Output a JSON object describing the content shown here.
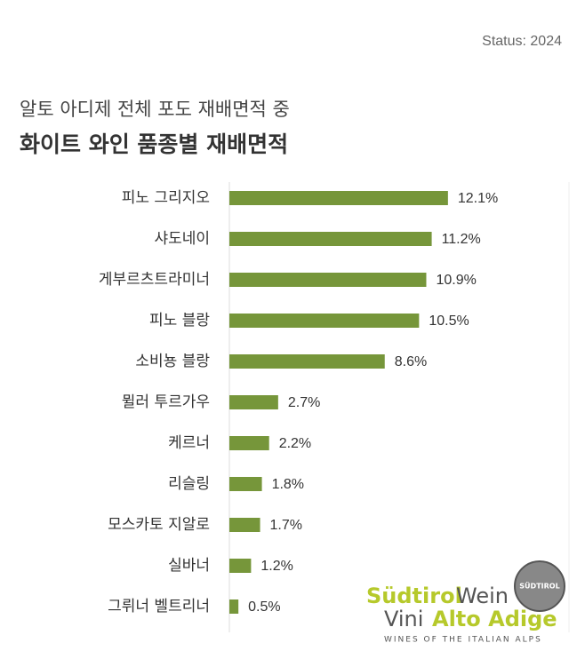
{
  "chart_data": {
    "type": "barh",
    "status": "Status: 2024",
    "subtitle": "알토 아디제 전체 포도 재배면적 중",
    "title": "화이트 와인 품종별 재배면적",
    "categories": [
      "피노 그리지오",
      "샤도네이",
      "게부르츠트라미너",
      "피노 블랑",
      "소비뇽 블랑",
      "뮐러 투르가우",
      "케르너",
      "리슬링",
      "모스카토 지알로",
      "실바너",
      "그뤼너 벨트리너"
    ],
    "values": [
      12.1,
      11.2,
      10.9,
      10.5,
      8.6,
      2.7,
      2.2,
      1.8,
      1.7,
      1.2,
      0.5
    ],
    "value_labels": [
      "12.1%",
      "11.2%",
      "10.9%",
      "10.5%",
      "8.6%",
      "2.7%",
      "2.2%",
      "1.8%",
      "1.7%",
      "1.2%",
      "0.5%"
    ],
    "color": "#76963a",
    "xlim": [
      0,
      18.8
    ],
    "logo": {
      "word1": "Südtirol",
      "word2": "Wein",
      "word3": "Vini",
      "word4": "Alto Adige",
      "tagline": "WINES OF THE ITALIAN ALPS",
      "badge": "SÜDTIROL"
    }
  }
}
